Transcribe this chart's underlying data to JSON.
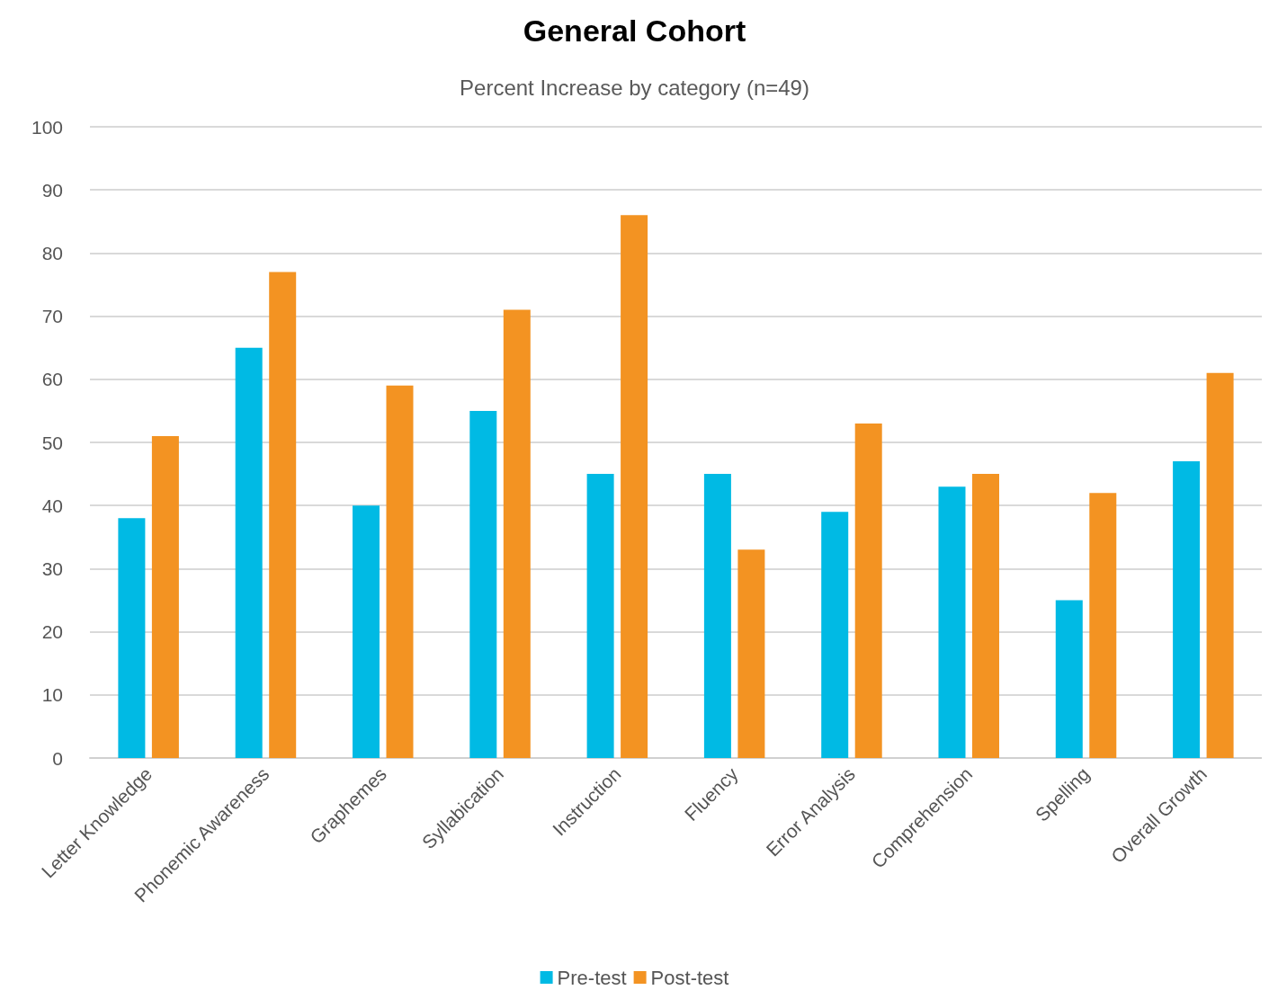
{
  "chart_data": {
    "type": "bar",
    "title": "General Cohort",
    "subtitle": "Percent Increase by category (n=49)",
    "categories": [
      "Letter Knowledge",
      "Phonemic Awareness",
      "Graphemes",
      "Syllabication",
      "Instruction",
      "Fluency",
      "Error Analysis",
      "Comprehension",
      "Spelling",
      "Overall Growth"
    ],
    "series": [
      {
        "name": "Pre-test",
        "color": "#00bae4",
        "values": [
          38,
          65,
          40,
          55,
          45,
          45,
          39,
          43,
          25,
          47
        ]
      },
      {
        "name": "Post-test",
        "color": "#f39322",
        "values": [
          51,
          77,
          59,
          71,
          86,
          33,
          53,
          45,
          42,
          61
        ]
      }
    ],
    "ylim": [
      0,
      100
    ],
    "yticks": [
      0,
      10,
      20,
      30,
      40,
      50,
      60,
      70,
      80,
      90,
      100
    ],
    "grid": "y",
    "legend": "bottom"
  }
}
